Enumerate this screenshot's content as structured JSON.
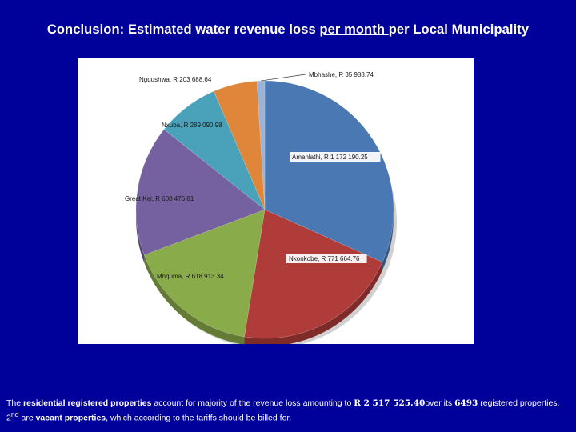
{
  "title": {
    "part1": "Conclusion: Estimated water revenue loss ",
    "part2": "per month ",
    "part3": "per Local Municipality"
  },
  "chart_data": {
    "type": "pie",
    "start_angle_deg": 0,
    "slices": [
      {
        "label": "Amahlathi, R 1 172 190.25",
        "name": "Amahlathi",
        "value": 1172190.25,
        "color": "#4a78b2"
      },
      {
        "label": "Nkonkobe, R 771 664.76",
        "name": "Nkonkobe",
        "value": 771664.76,
        "color": "#b03c3a"
      },
      {
        "label": "Mnquma, R 618 913.34",
        "name": "Mnquma",
        "value": 618913.34,
        "color": "#89ab4a"
      },
      {
        "label": "Great Kei, R 608 476.81",
        "name": "Great Kei",
        "value": 608476.81,
        "color": "#7561a0"
      },
      {
        "label": "Nxuba, R 289 090.98",
        "name": "Nxuba",
        "value": 289090.98,
        "color": "#4aa1ba"
      },
      {
        "label": "Ngqushwa, R 203 688.64",
        "name": "Ngqushwa",
        "value": 203688.64,
        "color": "#e0863a"
      },
      {
        "label": "Mbhashe, R 35 988.74",
        "name": "Mbhashe",
        "value": 35988.74,
        "color": "#9db3d6"
      }
    ]
  },
  "footnote": {
    "t1": "The ",
    "b1": "residential registered properties",
    "t2": " account for majority of the revenue loss amounting to ",
    "amount": "R 2 517 525.40",
    "t3": "over its ",
    "count": "6493",
    "t4": " registered properties. 2",
    "sup": "nd",
    "t5": " are ",
    "b2": "vacant properties",
    "t6": ", which according to the tariffs should be billed for."
  }
}
